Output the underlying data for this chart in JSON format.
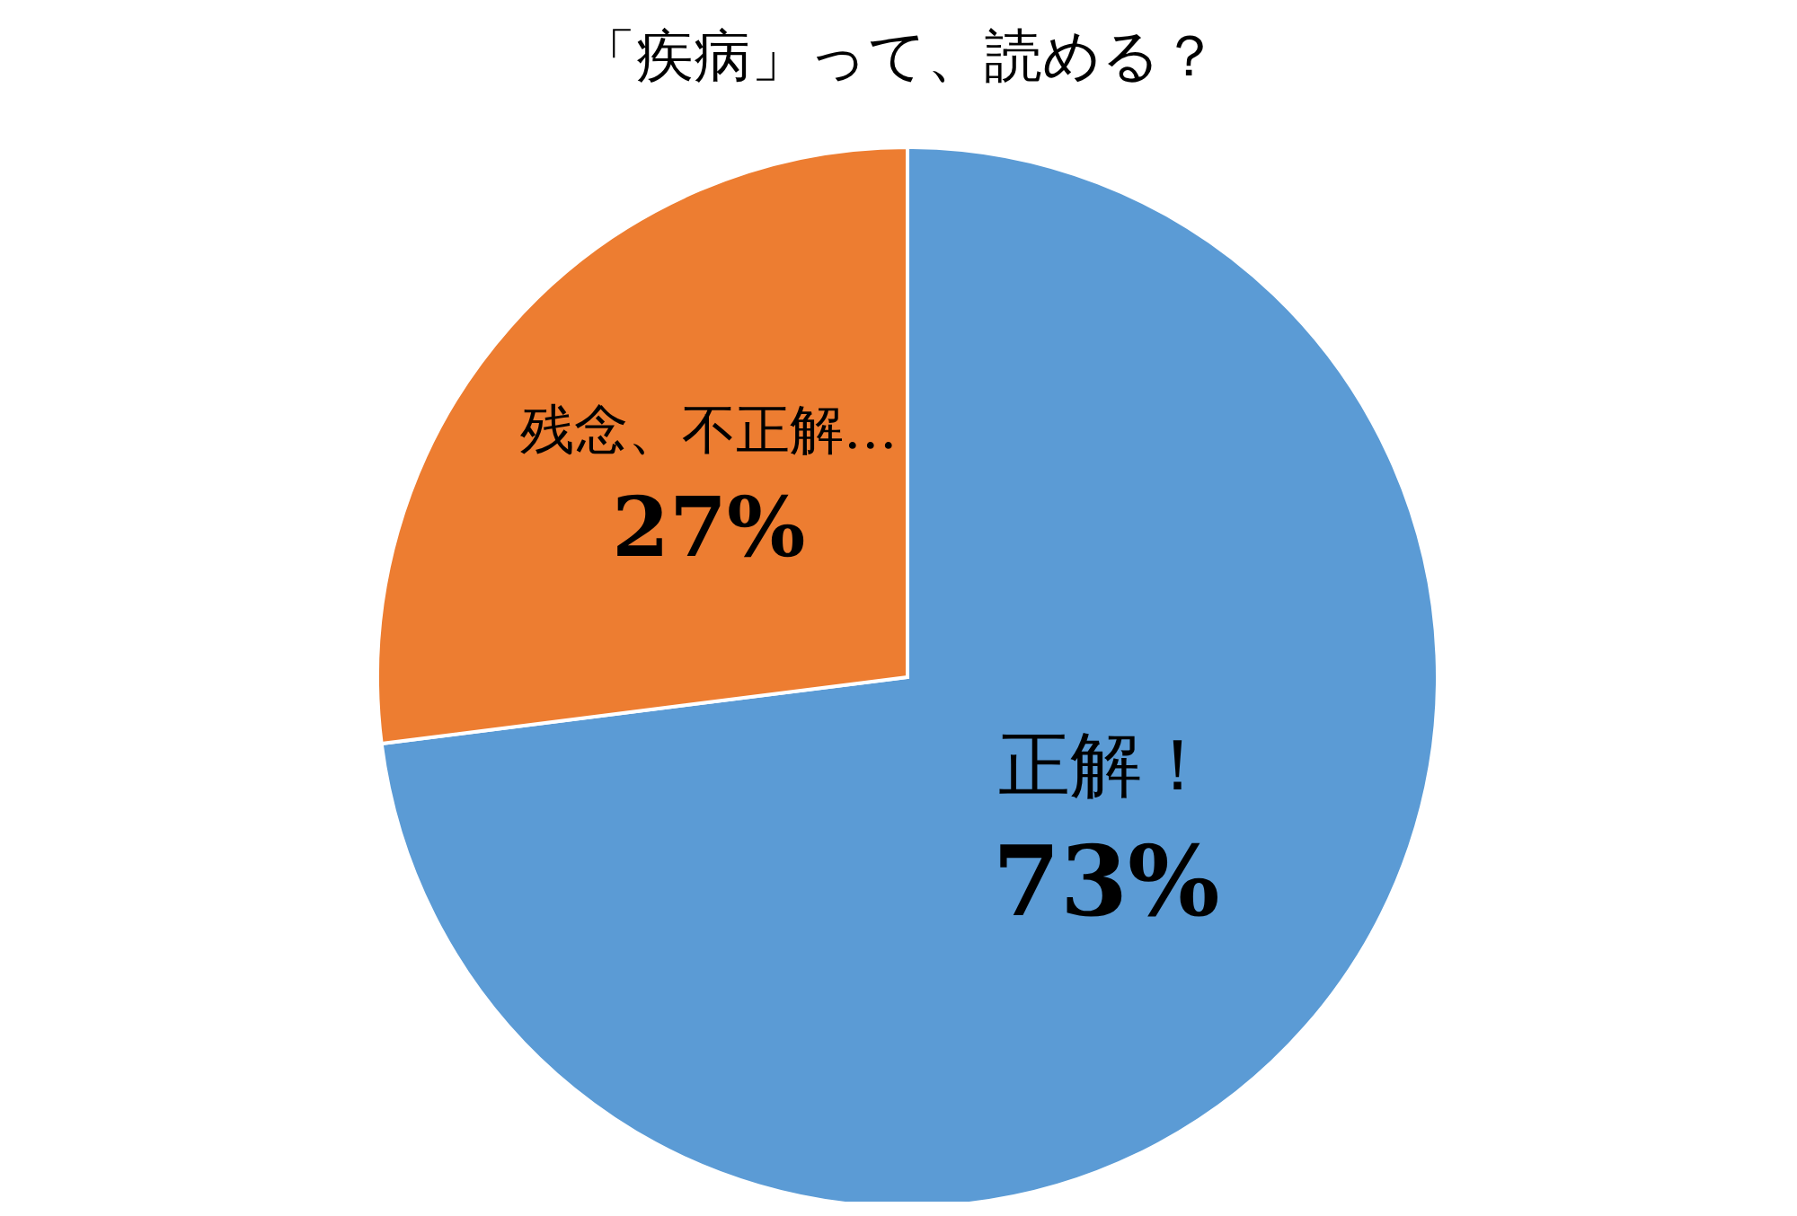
{
  "chart_data": {
    "type": "pie",
    "title": "「疾病」って、読める？",
    "categories": [
      "正解！",
      "残念、不正解…"
    ],
    "values": [
      73,
      27
    ],
    "colors": [
      "#5b9bd5",
      "#ed7d31"
    ],
    "value_labels": [
      "73%",
      "27%"
    ],
    "legend": false
  }
}
